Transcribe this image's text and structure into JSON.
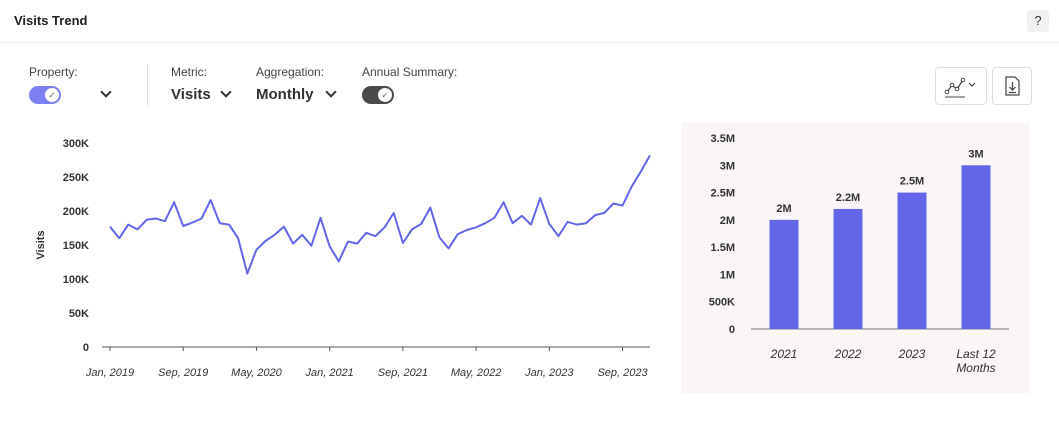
{
  "header": {
    "title": "Visits Trend",
    "help_label": "?"
  },
  "controls": {
    "property": {
      "label": "Property:"
    },
    "metric": {
      "label": "Metric:",
      "value": "Visits"
    },
    "aggregation": {
      "label": "Aggregation:",
      "value": "Monthly"
    },
    "annual_summary": {
      "label": "Annual Summary:"
    }
  },
  "colors": {
    "accent": "#6366e8",
    "toggle_on": "#7b7ff0",
    "toggle_dark": "#4a4a4a",
    "panel_bg": "#faf6f6"
  },
  "icons": {
    "chart_type": "line-chart-icon",
    "download": "download-icon"
  },
  "chart_data": [
    {
      "type": "line",
      "ylabel": "Visits",
      "ylim": [
        0,
        300000
      ],
      "yticks": [
        "0",
        "50K",
        "100K",
        "150K",
        "200K",
        "250K",
        "300K"
      ],
      "xtick_labels": [
        "Jan, 2019",
        "Sep, 2019",
        "May, 2020",
        "Jan, 2021",
        "Sep, 2021",
        "May, 2022",
        "Jan, 2023",
        "Sep, 2023"
      ],
      "x_start": "2019-01",
      "series": [
        {
          "values": [
            177000,
            160000,
            180000,
            173000,
            187000,
            189000,
            185000,
            213000,
            178000,
            183000,
            189000,
            216000,
            182000,
            180000,
            160000,
            108000,
            143000,
            156000,
            165000,
            177000,
            152000,
            165000,
            149000,
            190000,
            148000,
            126000,
            155000,
            152000,
            168000,
            163000,
            176000,
            197000,
            153000,
            173000,
            181000,
            205000,
            161000,
            145000,
            166000,
            172000,
            176000,
            182000,
            190000,
            213000,
            182000,
            193000,
            180000,
            219000,
            181000,
            163000,
            184000,
            180000,
            182000,
            194000,
            197000,
            211000,
            208000,
            236000,
            258000,
            282000
          ]
        }
      ],
      "grid": false
    },
    {
      "type": "bar",
      "categories": [
        "2021",
        "2022",
        "2023",
        "Last 12 Months"
      ],
      "values": [
        2000000,
        2200000,
        2500000,
        3000000
      ],
      "data_labels": [
        "2M",
        "2.2M",
        "2.5M",
        "3M"
      ],
      "ylim": [
        0,
        3500000
      ],
      "yticks": [
        "0",
        "500K",
        "1M",
        "1.5M",
        "2M",
        "2.5M",
        "3M",
        "3.5M"
      ]
    }
  ]
}
